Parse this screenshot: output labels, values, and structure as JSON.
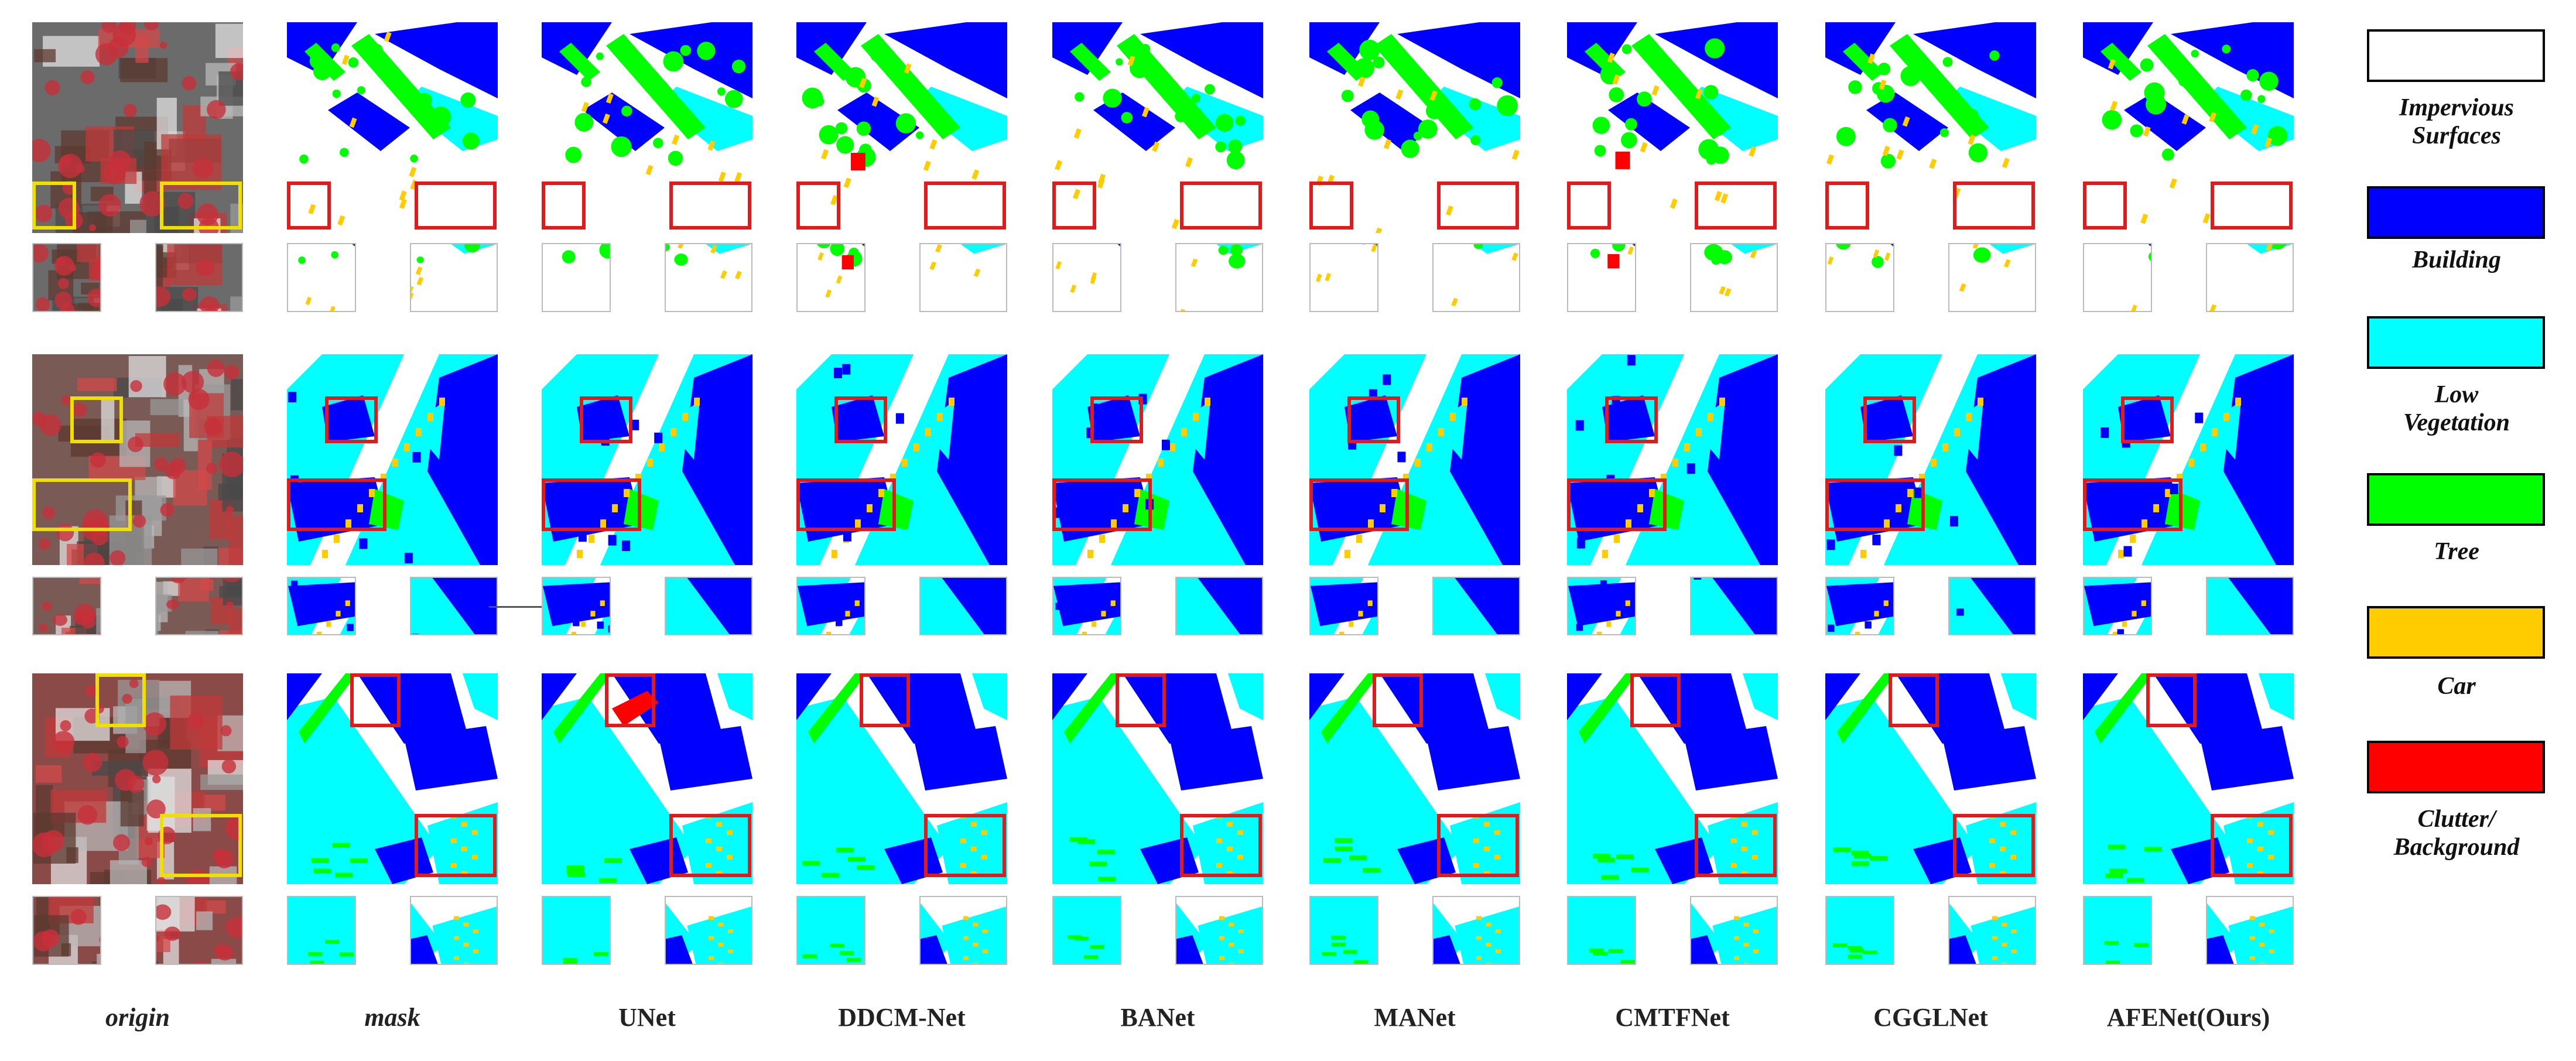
{
  "columns": [
    "origin",
    "mask",
    "UNet",
    "DDCM-Net",
    "BANet",
    "MANet",
    "CMTFNet",
    "CGGLNet",
    "AFENet(Ours)"
  ],
  "legend": [
    {
      "label": "Impervious\nSurfaces",
      "color": "#ffffff"
    },
    {
      "label": "Building",
      "color": "#0000ff"
    },
    {
      "label": "Low\nVegetation",
      "color": "#00ffff"
    },
    {
      "label": "Tree",
      "color": "#00ff00"
    },
    {
      "label": "Car",
      "color": "#ffcc00"
    },
    {
      "label": "Clutter/\nBackground",
      "color": "#ff0000"
    }
  ],
  "colors": {
    "impervious": "#ffffff",
    "building": "#0000ff",
    "low_vegetation": "#00ffff",
    "tree": "#00ff00",
    "car": "#ffcc00",
    "clutter": "#ff0000",
    "highlight_box": "#e01b1b",
    "origin_box": "#f0e000"
  }
}
